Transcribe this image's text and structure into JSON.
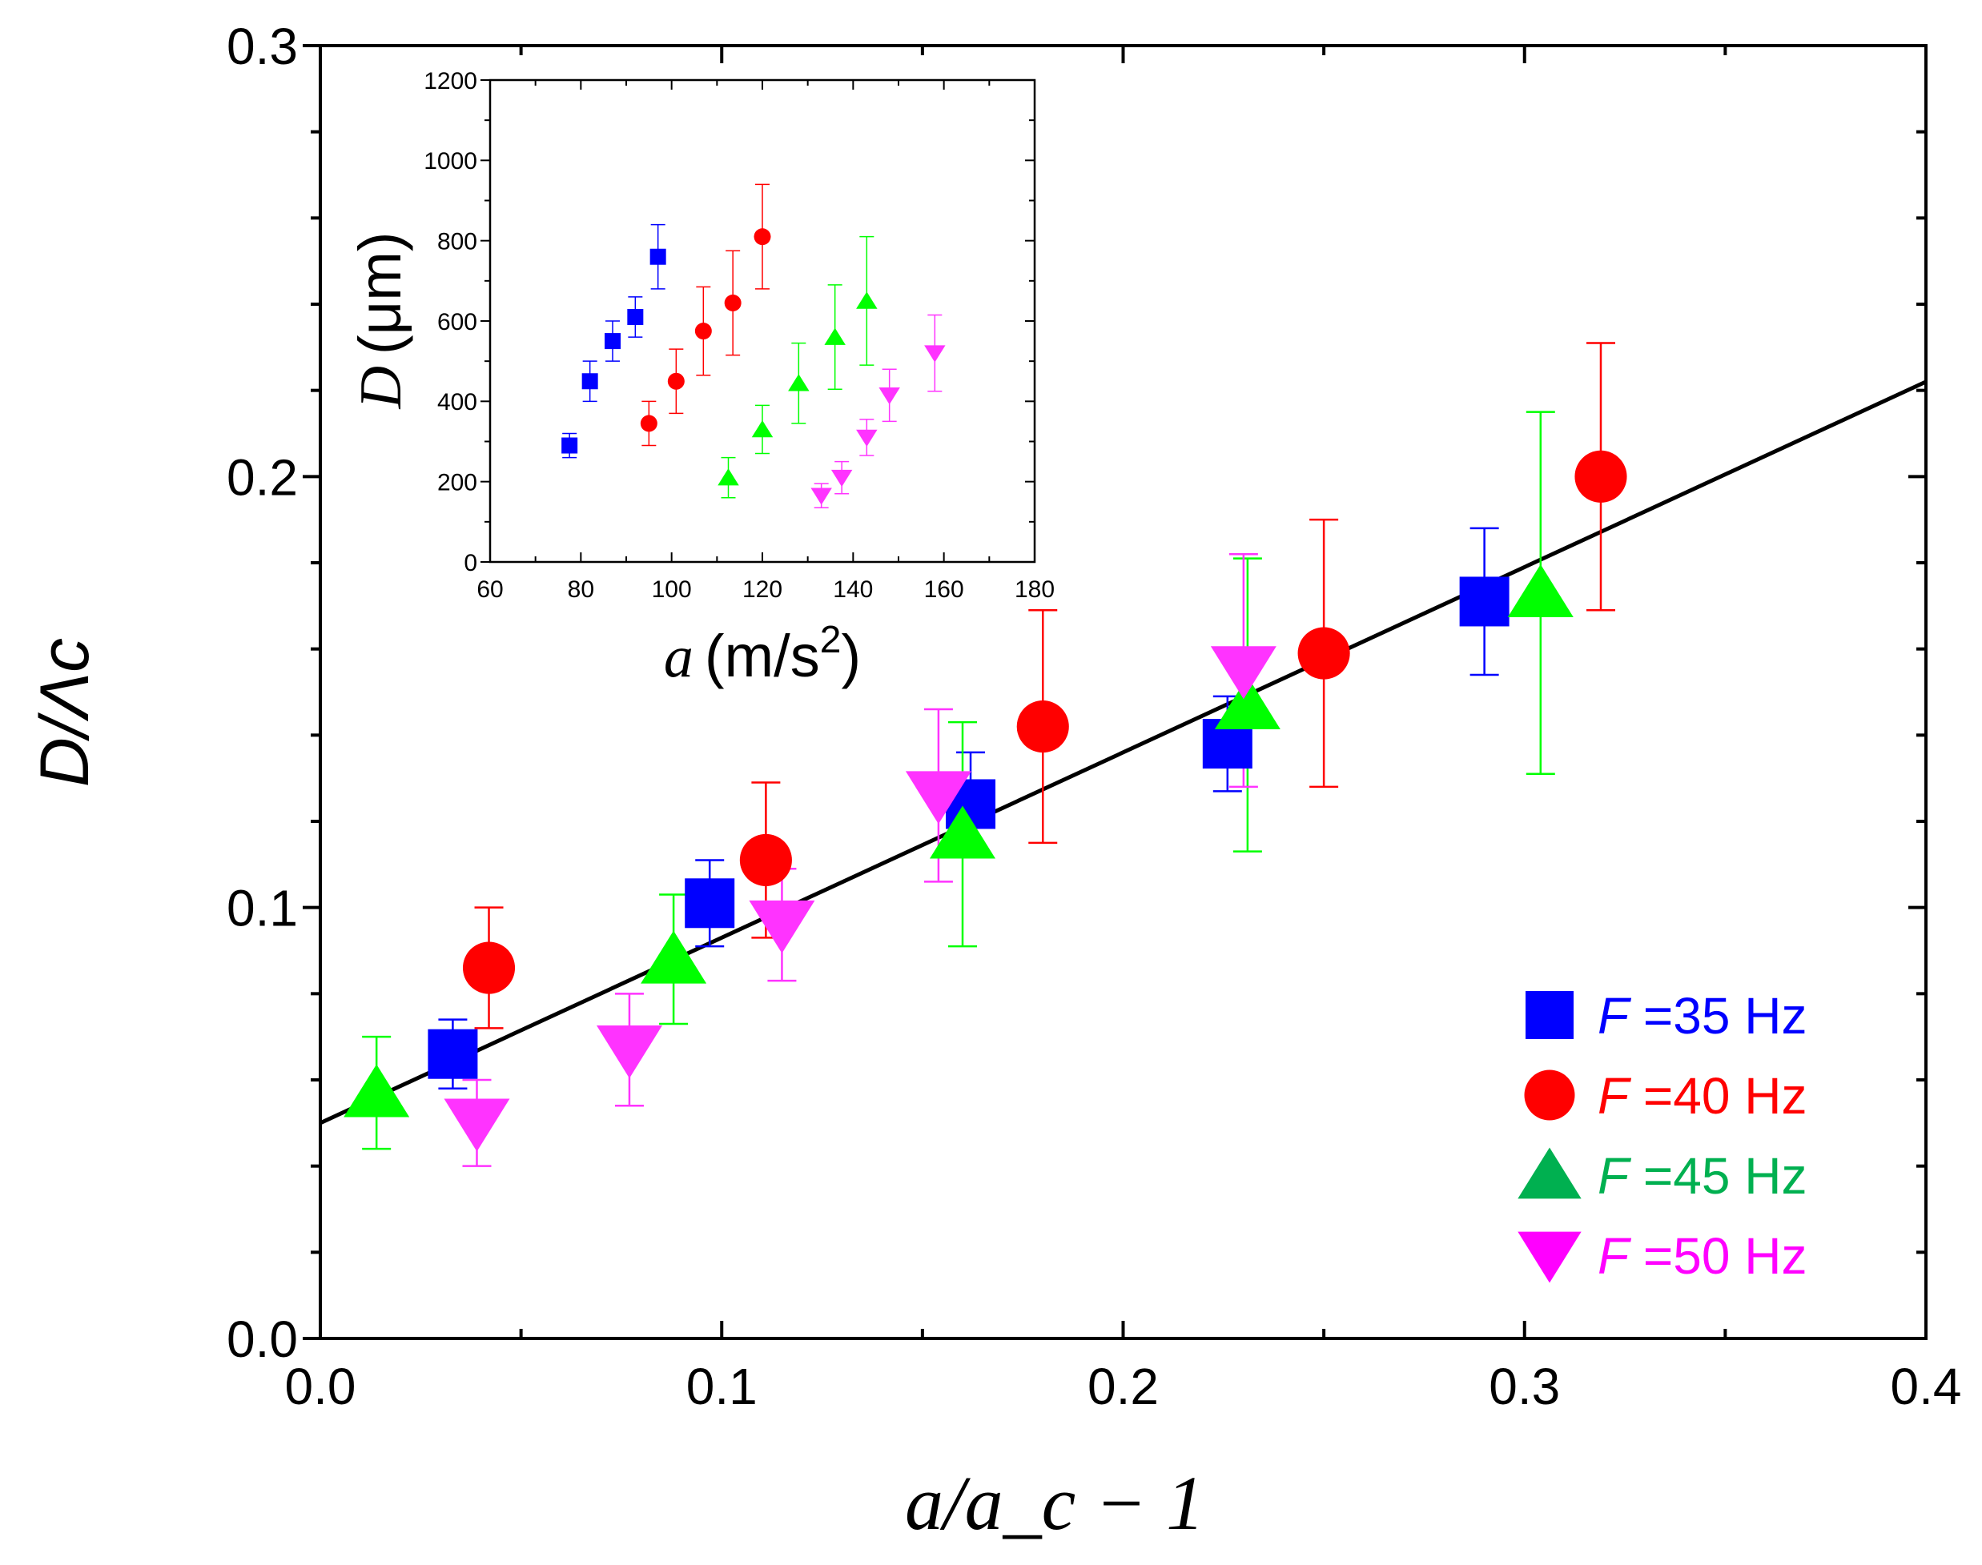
{
  "chart_data": [
    {
      "type": "scatter",
      "role": "main",
      "xlabel": "a/a_c − 1",
      "ylabel": "D/Λc",
      "xlim": [
        0.0,
        0.4
      ],
      "ylim": [
        0.0,
        0.3
      ],
      "xticks": [
        "0.0",
        "0.1",
        "0.2",
        "0.3",
        "0.4"
      ],
      "yticks": [
        "0.0",
        "0.1",
        "0.2",
        "0.3"
      ],
      "fit_line": {
        "x": [
          0.0,
          0.4
        ],
        "y": [
          0.05,
          0.222
        ]
      },
      "legend_position": "bottom-right",
      "series": [
        {
          "name": "F =35 Hz",
          "prefix": "F",
          "suffix": " =35 Hz",
          "color": "#0000ff",
          "marker": "square",
          "points": [
            {
              "x": 0.033,
              "y": 0.066,
              "err": 0.008
            },
            {
              "x": 0.097,
              "y": 0.101,
              "err": 0.01
            },
            {
              "x": 0.162,
              "y": 0.124,
              "err": 0.012
            },
            {
              "x": 0.226,
              "y": 0.138,
              "err": 0.011
            },
            {
              "x": 0.29,
              "y": 0.171,
              "err": 0.017
            }
          ]
        },
        {
          "name": "F =40 Hz",
          "prefix": "F",
          "suffix": " =40 Hz",
          "color": "#ff0000",
          "marker": "circle",
          "points": [
            {
              "x": 0.042,
              "y": 0.086,
              "err": 0.014
            },
            {
              "x": 0.111,
              "y": 0.111,
              "err": 0.018
            },
            {
              "x": 0.18,
              "y": 0.142,
              "err": 0.027
            },
            {
              "x": 0.25,
              "y": 0.159,
              "err": 0.031
            },
            {
              "x": 0.319,
              "y": 0.2,
              "err": 0.031
            }
          ]
        },
        {
          "name": "F =45 Hz",
          "prefix": "F",
          "suffix": " =45 Hz",
          "color": "#00ff00",
          "marker": "triangle-up",
          "legend_color": "#00b050",
          "points": [
            {
              "x": 0.014,
              "y": 0.057,
              "err": 0.013
            },
            {
              "x": 0.088,
              "y": 0.088,
              "err": 0.015
            },
            {
              "x": 0.16,
              "y": 0.117,
              "err": 0.026
            },
            {
              "x": 0.231,
              "y": 0.147,
              "err": 0.034
            },
            {
              "x": 0.304,
              "y": 0.173,
              "err": 0.042
            }
          ]
        },
        {
          "name": "F =50 Hz",
          "prefix": "F",
          "suffix": " =50 Hz",
          "color": "#ff33ff",
          "marker": "triangle-down",
          "legend_color": "#ff00ff",
          "points": [
            {
              "x": 0.039,
              "y": 0.05,
              "err": 0.01
            },
            {
              "x": 0.077,
              "y": 0.067,
              "err": 0.013
            },
            {
              "x": 0.115,
              "y": 0.096,
              "err": 0.013
            },
            {
              "x": 0.154,
              "y": 0.126,
              "err": 0.02
            },
            {
              "x": 0.23,
              "y": 0.155,
              "err": 0.027
            }
          ]
        }
      ]
    },
    {
      "type": "scatter",
      "role": "inset",
      "xlabel_var": "a",
      "xlabel_unit": "(m/s",
      "xlabel_sup": "2",
      "xlabel_close": ")",
      "ylabel_var": "D",
      "ylabel_unit": "(μm)",
      "xlim": [
        60,
        180
      ],
      "ylim": [
        0,
        1200
      ],
      "xticks": [
        "60",
        "80",
        "100",
        "120",
        "140",
        "160",
        "180"
      ],
      "yticks": [
        "0",
        "200",
        "400",
        "600",
        "800",
        "1000",
        "1200"
      ],
      "series": [
        {
          "name": "F =35 Hz",
          "color": "#0000ff",
          "marker": "square",
          "points": [
            {
              "x": 77.5,
              "y": 290,
              "err": 30
            },
            {
              "x": 82,
              "y": 450,
              "err": 50
            },
            {
              "x": 87,
              "y": 550,
              "err": 50
            },
            {
              "x": 92,
              "y": 610,
              "err": 50
            },
            {
              "x": 97,
              "y": 760,
              "err": 80
            }
          ]
        },
        {
          "name": "F =40 Hz",
          "color": "#ff0000",
          "marker": "circle",
          "points": [
            {
              "x": 95,
              "y": 345,
              "err": 55
            },
            {
              "x": 101,
              "y": 450,
              "err": 80
            },
            {
              "x": 107,
              "y": 575,
              "err": 110
            },
            {
              "x": 113.5,
              "y": 645,
              "err": 130
            },
            {
              "x": 120,
              "y": 810,
              "err": 130
            }
          ]
        },
        {
          "name": "F =45 Hz",
          "color": "#00ff00",
          "marker": "triangle-up",
          "points": [
            {
              "x": 112.5,
              "y": 210,
              "err": 50
            },
            {
              "x": 120,
              "y": 330,
              "err": 60
            },
            {
              "x": 128,
              "y": 445,
              "err": 100
            },
            {
              "x": 136,
              "y": 560,
              "err": 130
            },
            {
              "x": 143,
              "y": 650,
              "err": 160
            }
          ]
        },
        {
          "name": "F =50 Hz",
          "color": "#ff33ff",
          "marker": "triangle-down",
          "points": [
            {
              "x": 133,
              "y": 165,
              "err": 30
            },
            {
              "x": 137.5,
              "y": 210,
              "err": 40
            },
            {
              "x": 143,
              "y": 310,
              "err": 45
            },
            {
              "x": 148,
              "y": 415,
              "err": 65
            },
            {
              "x": 158,
              "y": 520,
              "err": 95
            }
          ]
        }
      ]
    }
  ]
}
